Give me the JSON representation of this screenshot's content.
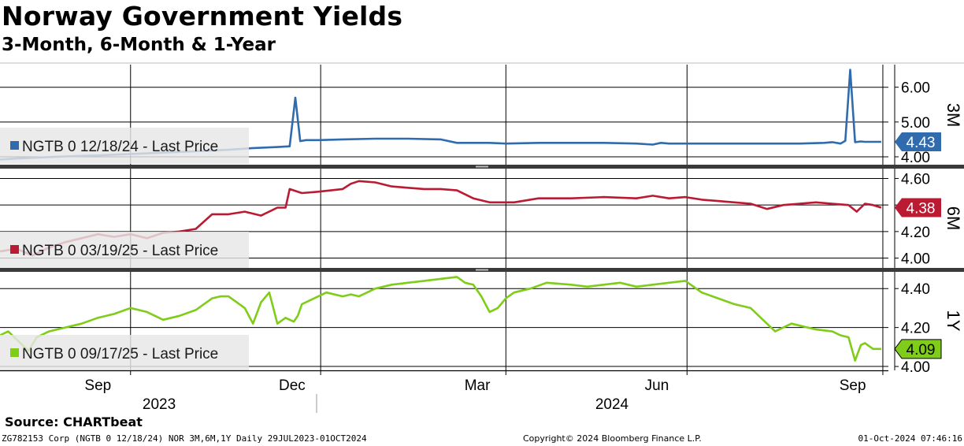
{
  "title": "Norway Government Yields",
  "subtitle": "3-Month, 6-Month & 1-Year",
  "source": "Source: CHARTbeat",
  "footer": {
    "left": "ZG782153 Corp (NGTB 0 12/18/24) NOR 3M,6M,1Y  Daily 29JUL2023-01OCT2024",
    "middle": "Copyright© 2024 Bloomberg Finance L.P.",
    "right": "01-Oct-2024 07:46:16"
  },
  "colors": {
    "3M": "#2f6bad",
    "6M": "#bb1a33",
    "1Y": "#7fcc19"
  },
  "x_axis": {
    "months": [
      {
        "label": "Sep",
        "t": 0.12
      },
      {
        "label": "Dec",
        "t": 0.358
      },
      {
        "label": "Mar",
        "t": 0.585
      },
      {
        "label": "Jun",
        "t": 0.805
      },
      {
        "label": "Sep",
        "t": 1.045
      }
    ],
    "years": [
      {
        "label": "2023",
        "t": 0.195
      },
      {
        "label": "2024",
        "t": 0.75
      }
    ],
    "gridlines_t": [
      0.16,
      0.393,
      0.62,
      0.842,
      1.082
    ]
  },
  "chart_data": [
    {
      "type": "line",
      "name": "3M",
      "ylabel": "3M",
      "legend": "NGTB 0 12/18/24 - Last Price",
      "last_value": "4.43",
      "ylim": [
        3.75,
        6.65
      ],
      "ticks": [
        "4.00",
        "5.00",
        "6.00"
      ],
      "x": [
        0,
        0.02,
        0.05,
        0.08,
        0.12,
        0.16,
        0.2,
        0.24,
        0.28,
        0.31,
        0.34,
        0.355,
        0.362,
        0.368,
        0.375,
        0.39,
        0.42,
        0.46,
        0.5,
        0.54,
        0.56,
        0.6,
        0.62,
        0.66,
        0.7,
        0.74,
        0.78,
        0.8,
        0.81,
        0.82,
        0.86,
        0.9,
        0.94,
        0.98,
        1.01,
        1.02,
        1.03,
        1.036,
        1.042,
        1.048,
        1.055,
        1.06,
        1.07,
        1.08
      ],
      "values": [
        3.92,
        3.95,
        3.98,
        4.01,
        4.04,
        4.08,
        4.12,
        4.16,
        4.2,
        4.25,
        4.28,
        4.3,
        5.7,
        4.45,
        4.48,
        4.48,
        4.5,
        4.52,
        4.52,
        4.5,
        4.4,
        4.4,
        4.38,
        4.4,
        4.4,
        4.4,
        4.38,
        4.35,
        4.4,
        4.38,
        4.38,
        4.38,
        4.38,
        4.38,
        4.4,
        4.42,
        4.38,
        4.46,
        6.5,
        4.42,
        4.44,
        4.43,
        4.43,
        4.43
      ]
    },
    {
      "type": "line",
      "name": "6M",
      "ylabel": "6M",
      "legend": "NGTB 0 03/19/25 - Last Price",
      "last_value": "4.38",
      "ylim": [
        3.92,
        4.68
      ],
      "ticks": [
        "4.00",
        "4.20",
        "4.40",
        "4.60"
      ],
      "x": [
        0,
        0.02,
        0.04,
        0.06,
        0.08,
        0.1,
        0.12,
        0.14,
        0.16,
        0.18,
        0.2,
        0.22,
        0.24,
        0.26,
        0.28,
        0.3,
        0.32,
        0.34,
        0.35,
        0.355,
        0.36,
        0.37,
        0.39,
        0.42,
        0.43,
        0.44,
        0.46,
        0.48,
        0.5,
        0.52,
        0.54,
        0.56,
        0.58,
        0.6,
        0.63,
        0.66,
        0.7,
        0.74,
        0.78,
        0.8,
        0.82,
        0.84,
        0.86,
        0.88,
        0.9,
        0.92,
        0.94,
        0.96,
        0.98,
        1.0,
        1.02,
        1.04,
        1.05,
        1.06,
        1.07,
        1.08
      ],
      "values": [
        4.05,
        4.07,
        4.02,
        4.08,
        4.12,
        4.15,
        4.18,
        4.16,
        4.18,
        4.15,
        4.19,
        4.2,
        4.22,
        4.33,
        4.33,
        4.35,
        4.32,
        4.38,
        4.38,
        4.52,
        4.51,
        4.49,
        4.5,
        4.52,
        4.56,
        4.58,
        4.57,
        4.54,
        4.53,
        4.52,
        4.52,
        4.51,
        4.45,
        4.42,
        4.42,
        4.45,
        4.45,
        4.46,
        4.45,
        4.47,
        4.45,
        4.46,
        4.44,
        4.43,
        4.42,
        4.41,
        4.37,
        4.4,
        4.41,
        4.42,
        4.41,
        4.4,
        4.35,
        4.41,
        4.4,
        4.38
      ]
    },
    {
      "type": "line",
      "name": "1Y",
      "ylabel": "1Y",
      "legend": "NGTB 0 09/17/25 - Last Price",
      "last_value": "4.09",
      "ylim": [
        3.98,
        4.49
      ],
      "ticks": [
        "4.00",
        "4.20",
        "4.40"
      ],
      "x": [
        0,
        0.01,
        0.025,
        0.035,
        0.045,
        0.06,
        0.08,
        0.1,
        0.12,
        0.14,
        0.16,
        0.18,
        0.2,
        0.22,
        0.24,
        0.26,
        0.27,
        0.28,
        0.3,
        0.31,
        0.32,
        0.33,
        0.34,
        0.35,
        0.355,
        0.36,
        0.365,
        0.37,
        0.38,
        0.4,
        0.42,
        0.43,
        0.44,
        0.46,
        0.48,
        0.5,
        0.52,
        0.54,
        0.56,
        0.57,
        0.58,
        0.59,
        0.6,
        0.61,
        0.62,
        0.63,
        0.65,
        0.67,
        0.7,
        0.72,
        0.74,
        0.76,
        0.78,
        0.8,
        0.82,
        0.84,
        0.86,
        0.88,
        0.9,
        0.92,
        0.94,
        0.95,
        0.96,
        0.97,
        0.98,
        1.0,
        1.02,
        1.03,
        1.04,
        1.048,
        1.055,
        1.06,
        1.07,
        1.08
      ],
      "values": [
        4.16,
        4.18,
        4.12,
        4.08,
        4.15,
        4.18,
        4.2,
        4.22,
        4.25,
        4.27,
        4.3,
        4.28,
        4.24,
        4.26,
        4.29,
        4.35,
        4.36,
        4.36,
        4.3,
        4.22,
        4.33,
        4.38,
        4.22,
        4.25,
        4.24,
        4.23,
        4.26,
        4.32,
        4.34,
        4.38,
        4.36,
        4.37,
        4.36,
        4.4,
        4.42,
        4.43,
        4.44,
        4.45,
        4.46,
        4.43,
        4.42,
        4.36,
        4.28,
        4.3,
        4.35,
        4.38,
        4.4,
        4.43,
        4.42,
        4.41,
        4.42,
        4.43,
        4.41,
        4.42,
        4.43,
        4.44,
        4.38,
        4.35,
        4.32,
        4.3,
        4.22,
        4.18,
        4.2,
        4.22,
        4.21,
        4.19,
        4.18,
        4.16,
        4.15,
        4.03,
        4.11,
        4.12,
        4.09,
        4.09
      ]
    }
  ]
}
